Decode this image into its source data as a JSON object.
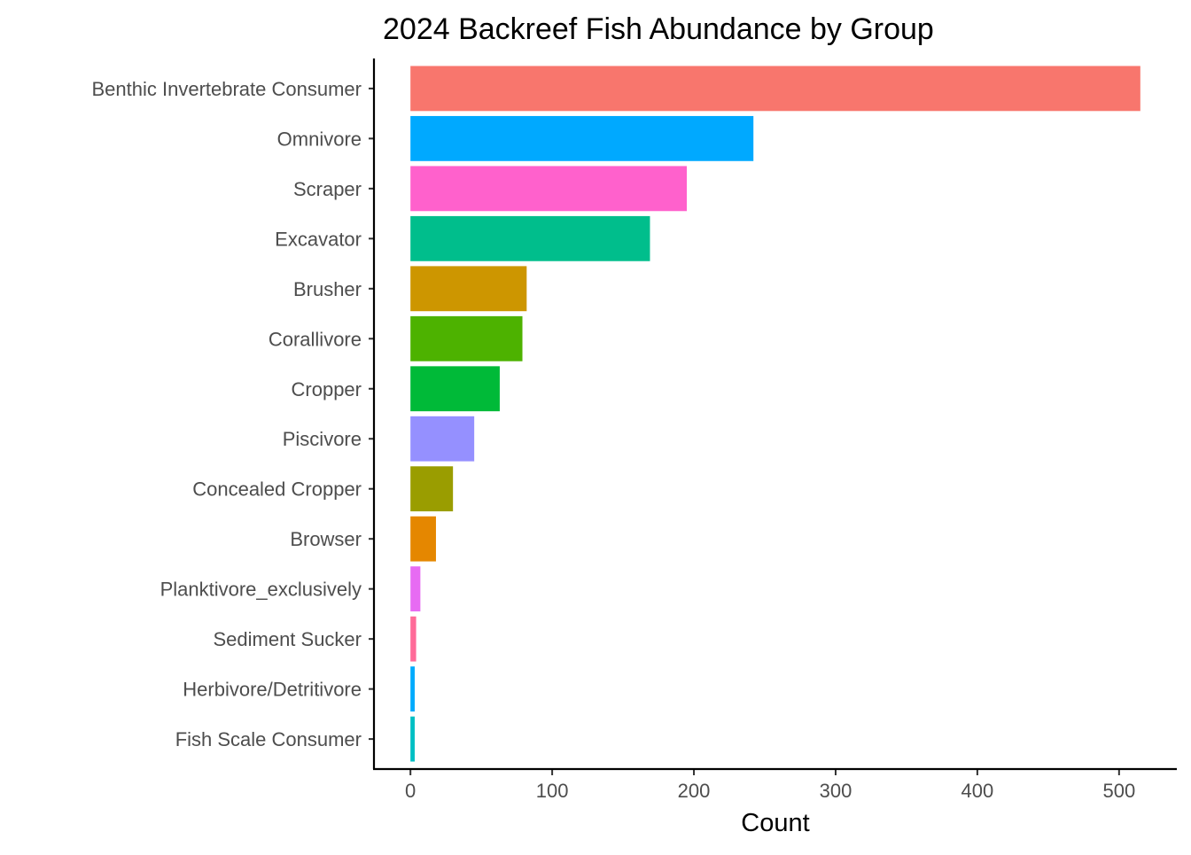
{
  "chart_data": {
    "type": "bar",
    "orientation": "horizontal",
    "title": "2024 Backreef Fish Abundance by Group",
    "xlabel": "Count",
    "ylabel": "",
    "xlim": [
      -25.75,
      540.75
    ],
    "xticks": [
      0,
      100,
      200,
      300,
      400,
      500
    ],
    "grid": false,
    "legend": "none",
    "categories": [
      "Benthic Invertebrate Consumer",
      "Omnivore",
      "Scraper",
      "Excavator",
      "Brusher",
      "Corallivore",
      "Cropper",
      "Piscivore",
      "Concealed Cropper",
      "Browser",
      "Planktivore_exclusively",
      "Sediment Sucker",
      "Herbivore/Detritivore",
      "Fish Scale Consumer"
    ],
    "values": [
      515,
      242,
      195,
      169,
      82,
      79,
      63,
      45,
      30,
      18,
      7,
      4,
      3,
      3
    ],
    "colors": [
      "#F8766D",
      "#00A9FF",
      "#FF61CC",
      "#00BE8C",
      "#CD9600",
      "#4DB200",
      "#00BA38",
      "#9590FF",
      "#9A9D00",
      "#E58700",
      "#E76BF3",
      "#FF6A98",
      "#00ABFD",
      "#00BFC4"
    ]
  }
}
